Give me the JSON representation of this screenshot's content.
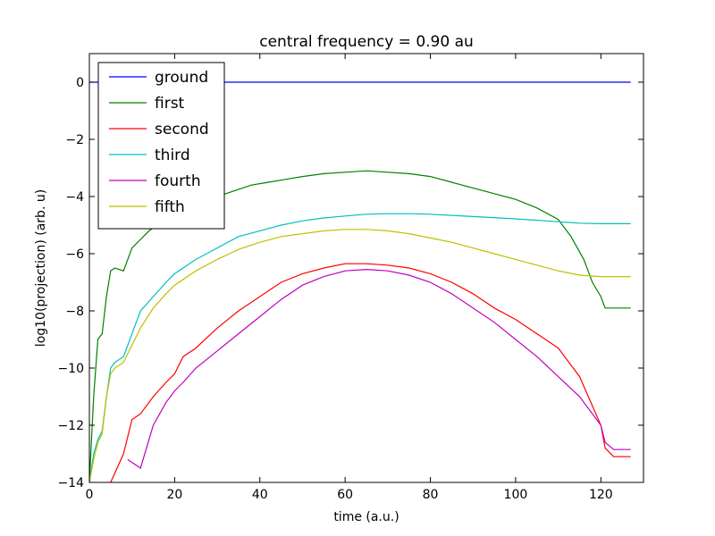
{
  "chart_data": {
    "type": "line",
    "title": "central frequency = 0.90 au",
    "xlabel": "time (a.u.)",
    "ylabel": "log10(projection) (arb. u)",
    "xlim": [
      0,
      130
    ],
    "ylim": [
      -14,
      1
    ],
    "xticks": [
      0,
      20,
      40,
      60,
      80,
      100,
      120
    ],
    "yticks": [
      -14,
      -12,
      -10,
      -8,
      -6,
      -4,
      -2,
      0
    ],
    "xtick_labels": [
      "0",
      "20",
      "40",
      "60",
      "80",
      "100",
      "120"
    ],
    "ytick_labels": [
      "−14",
      "−12",
      "−10",
      "−8",
      "−6",
      "−4",
      "−2",
      "0"
    ],
    "grid": false,
    "legend_position": "top-left",
    "series": [
      {
        "name": "ground",
        "color": "#0000ff",
        "x": [
          0,
          127
        ],
        "y": [
          0,
          0
        ]
      },
      {
        "name": "first",
        "color": "#008000",
        "x": [
          0,
          1,
          2,
          3,
          4,
          5,
          6,
          8,
          10,
          12,
          14,
          16,
          18,
          20,
          22,
          25,
          28,
          30,
          34,
          38,
          42,
          46,
          50,
          55,
          60,
          65,
          70,
          75,
          80,
          85,
          90,
          95,
          100,
          105,
          110,
          113,
          116,
          118,
          120,
          121,
          123,
          127
        ],
        "y": [
          -14,
          -11,
          -9,
          -8.8,
          -7.5,
          -6.6,
          -6.5,
          -6.6,
          -5.8,
          -5.5,
          -5.2,
          -5,
          -4.8,
          -4.6,
          -4.5,
          -4.3,
          -4.1,
          -4,
          -3.8,
          -3.6,
          -3.5,
          -3.4,
          -3.3,
          -3.2,
          -3.15,
          -3.1,
          -3.15,
          -3.2,
          -3.3,
          -3.5,
          -3.7,
          -3.9,
          -4.1,
          -4.4,
          -4.8,
          -5.4,
          -6.2,
          -7,
          -7.5,
          -7.9,
          -7.9,
          -7.9
        ]
      },
      {
        "name": "second",
        "color": "#ff0000",
        "x": [
          5,
          8,
          10,
          12,
          15,
          18,
          20,
          22,
          25,
          30,
          35,
          40,
          45,
          50,
          55,
          60,
          65,
          70,
          75,
          80,
          85,
          90,
          95,
          100,
          105,
          110,
          115,
          120,
          121,
          123,
          127
        ],
        "y": [
          -14,
          -13,
          -11.8,
          -11.6,
          -11,
          -10.5,
          -10.2,
          -9.6,
          -9.3,
          -8.6,
          -8,
          -7.5,
          -7,
          -6.7,
          -6.5,
          -6.35,
          -6.35,
          -6.4,
          -6.5,
          -6.7,
          -7,
          -7.4,
          -7.9,
          -8.3,
          -8.8,
          -9.3,
          -10.3,
          -12,
          -12.8,
          -13.1,
          -13.1
        ]
      },
      {
        "name": "third",
        "color": "#00bfbf",
        "x": [
          0,
          1,
          2,
          3,
          4,
          5,
          6,
          8,
          10,
          12,
          15,
          18,
          20,
          25,
          30,
          35,
          40,
          45,
          50,
          55,
          60,
          65,
          70,
          75,
          80,
          85,
          90,
          100,
          110,
          115,
          120,
          127
        ],
        "y": [
          -14,
          -13,
          -12.5,
          -12.2,
          -11,
          -10,
          -9.8,
          -9.6,
          -8.8,
          -8,
          -7.5,
          -7,
          -6.7,
          -6.2,
          -5.8,
          -5.4,
          -5.2,
          -5,
          -4.85,
          -4.75,
          -4.68,
          -4.62,
          -4.6,
          -4.6,
          -4.62,
          -4.66,
          -4.7,
          -4.78,
          -4.88,
          -4.93,
          -4.95,
          -4.95
        ]
      },
      {
        "name": "fourth",
        "color": "#bf00bf",
        "x": [
          9,
          12,
          15,
          18,
          20,
          22,
          25,
          30,
          35,
          40,
          45,
          50,
          55,
          60,
          65,
          70,
          75,
          80,
          85,
          90,
          95,
          100,
          105,
          110,
          115,
          120,
          121,
          123,
          127
        ],
        "y": [
          -13.2,
          -13.5,
          -12,
          -11.2,
          -10.8,
          -10.5,
          -10,
          -9.4,
          -8.8,
          -8.2,
          -7.6,
          -7.1,
          -6.8,
          -6.6,
          -6.55,
          -6.6,
          -6.75,
          -7,
          -7.4,
          -7.9,
          -8.4,
          -9,
          -9.6,
          -10.3,
          -11,
          -12,
          -12.6,
          -12.85,
          -12.85
        ]
      },
      {
        "name": "fifth",
        "color": "#bfbf00",
        "x": [
          0,
          1,
          2,
          3,
          4,
          5,
          6,
          8,
          10,
          12,
          15,
          18,
          20,
          25,
          30,
          35,
          40,
          45,
          50,
          55,
          60,
          65,
          70,
          75,
          80,
          85,
          90,
          95,
          100,
          105,
          110,
          115,
          120,
          127
        ],
        "y": [
          -14,
          -13.2,
          -12.6,
          -12.3,
          -11,
          -10.2,
          -10,
          -9.8,
          -9.2,
          -8.6,
          -7.9,
          -7.4,
          -7.1,
          -6.6,
          -6.2,
          -5.85,
          -5.6,
          -5.4,
          -5.3,
          -5.2,
          -5.15,
          -5.15,
          -5.2,
          -5.3,
          -5.45,
          -5.6,
          -5.8,
          -6,
          -6.2,
          -6.4,
          -6.6,
          -6.75,
          -6.8,
          -6.8
        ]
      }
    ]
  }
}
